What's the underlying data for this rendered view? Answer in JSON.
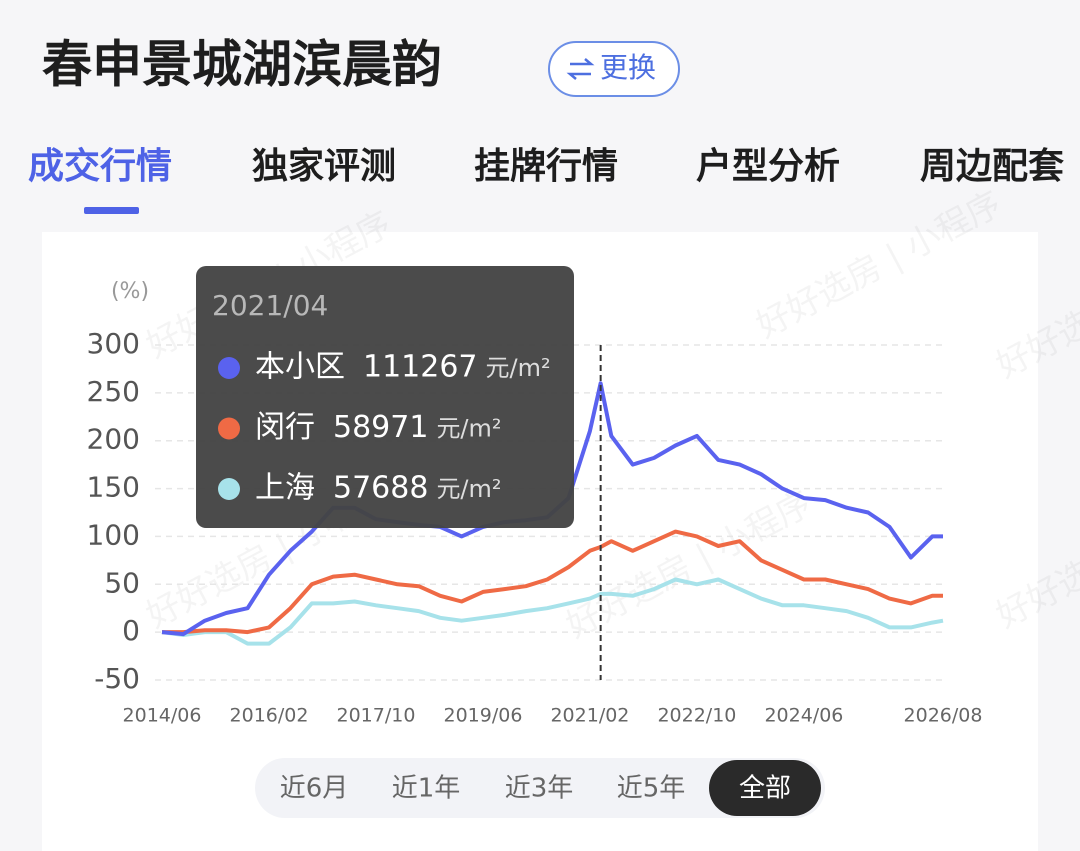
{
  "header": {
    "title": "春申景城湖滨晨韵",
    "switch_button": "更换"
  },
  "tabs": {
    "items": [
      "成交行情",
      "独家评测",
      "挂牌行情",
      "户型分析",
      "周边配套"
    ],
    "active": 0
  },
  "watermark": "好好选房 | 小程序",
  "chart_data": {
    "type": "line",
    "y_unit_label": "(%)",
    "x": [
      "2014/06",
      "2014/10",
      "2015/02",
      "2015/06",
      "2015/10",
      "2016/02",
      "2016/06",
      "2016/10",
      "2017/02",
      "2017/06",
      "2017/10",
      "2018/02",
      "2018/06",
      "2018/10",
      "2019/02",
      "2019/06",
      "2019/10",
      "2020/02",
      "2020/06",
      "2020/10",
      "2021/02",
      "2021/04",
      "2021/06",
      "2021/10",
      "2022/02",
      "2022/06",
      "2022/10",
      "2023/02",
      "2023/06",
      "2023/10",
      "2024/02",
      "2024/06",
      "2024/10",
      "2025/02",
      "2025/06",
      "2025/10",
      "2026/02",
      "2026/06",
      "2026/08"
    ],
    "series": [
      {
        "name": "本小区",
        "color": "#5a62ef",
        "values": [
          0,
          -2,
          12,
          20,
          25,
          60,
          85,
          105,
          130,
          130,
          118,
          115,
          112,
          110,
          100,
          110,
          115,
          117,
          120,
          140,
          210,
          260,
          205,
          175,
          182,
          195,
          205,
          180,
          175,
          165,
          150,
          140,
          138,
          130,
          125,
          110,
          78,
          100,
          100
        ]
      },
      {
        "name": "闵行",
        "color": "#ef6a45",
        "values": [
          0,
          0,
          2,
          2,
          0,
          5,
          25,
          50,
          58,
          60,
          55,
          50,
          48,
          38,
          32,
          42,
          45,
          48,
          55,
          68,
          85,
          89,
          95,
          85,
          95,
          105,
          100,
          90,
          95,
          75,
          65,
          55,
          55,
          50,
          45,
          35,
          30,
          38,
          38
        ]
      },
      {
        "name": "上海",
        "color": "#a7e2ea",
        "values": [
          0,
          -3,
          0,
          0,
          -12,
          -12,
          5,
          30,
          30,
          32,
          28,
          25,
          22,
          15,
          12,
          15,
          18,
          22,
          25,
          30,
          35,
          40,
          40,
          38,
          45,
          55,
          50,
          55,
          45,
          35,
          28,
          28,
          25,
          22,
          15,
          5,
          5,
          10,
          12
        ]
      }
    ],
    "xlim": [
      "2014/06",
      "2026/08"
    ],
    "xticks": [
      "2014/06",
      "2016/02",
      "2017/10",
      "2019/06",
      "2021/02",
      "2022/10",
      "2024/06",
      "2026/08"
    ],
    "ylim": [
      -50,
      300
    ],
    "yticks": [
      -50,
      0,
      50,
      100,
      150,
      200,
      250,
      300
    ],
    "grid": true,
    "tooltip": {
      "x": "2021/04",
      "unit": "元/m²",
      "values": [
        111267,
        58971,
        57688
      ]
    },
    "ranges": {
      "items": [
        "近6月",
        "近1年",
        "近3年",
        "近5年",
        "全部"
      ],
      "active": 4
    }
  }
}
